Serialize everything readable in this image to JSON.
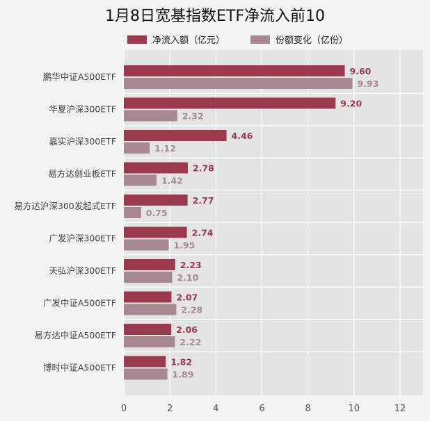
{
  "chart_data": {
    "type": "bar",
    "orientation": "horizontal",
    "title": "1月8日宽基指数ETF净流入前10",
    "categories": [
      "鹏华中证A500ETF",
      "华夏沪深300ETF",
      "嘉实沪深300ETF",
      "易方达创业板ETF",
      "易方达沪深300发起式ETF",
      "广发沪深300ETF",
      "天弘沪深300ETF",
      "广发中证A500ETF",
      "易方达中证A500ETF",
      "博时中证A500ETF"
    ],
    "series": [
      {
        "name": "净流入额（亿元）",
        "values": [
          9.6,
          9.2,
          4.46,
          2.78,
          2.77,
          2.74,
          2.23,
          2.07,
          2.06,
          1.82
        ],
        "labels": [
          "9.60",
          "9.20",
          "4.46",
          "2.78",
          "2.77",
          "2.74",
          "2.23",
          "2.07",
          "2.06",
          "1.82"
        ],
        "color": "#9b3a4d"
      },
      {
        "name": "份额变化（亿份）",
        "values": [
          9.93,
          2.32,
          1.12,
          1.42,
          0.75,
          1.95,
          2.1,
          2.28,
          2.22,
          1.89
        ],
        "labels": [
          "9.93",
          "2.32",
          "1.12",
          "1.42",
          "0.75",
          "1.95",
          "2.10",
          "2.28",
          "2.22",
          "1.89"
        ],
        "color": "#a88890"
      }
    ],
    "xlim": [
      0,
      13
    ],
    "xticks": [
      "0",
      "2",
      "4",
      "6",
      "8",
      "10",
      "12"
    ],
    "grid": true,
    "legend_position": "top"
  }
}
